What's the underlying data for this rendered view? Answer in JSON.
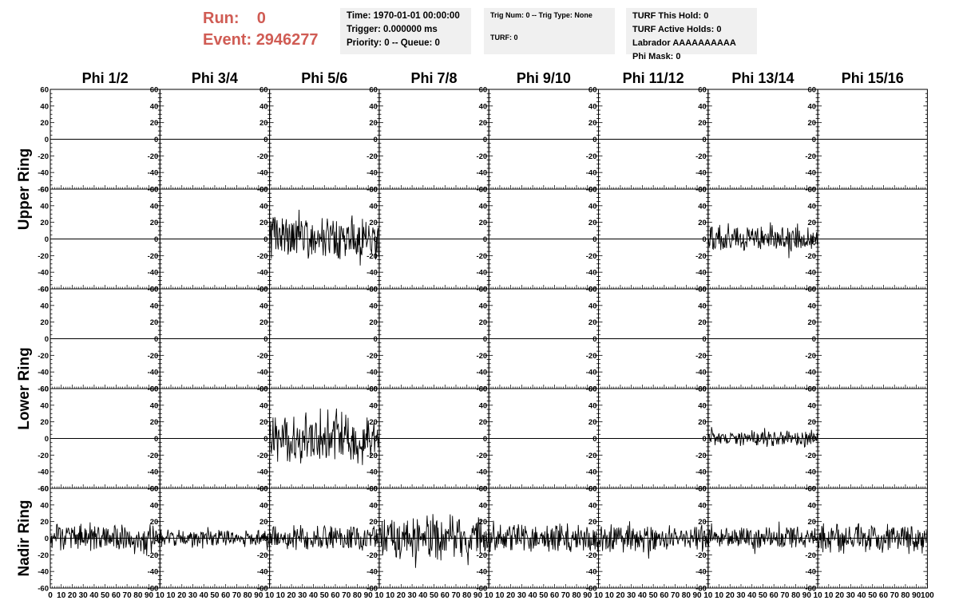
{
  "header": {
    "run_label": "Run:",
    "run_value": "0",
    "event_label": "Event:",
    "event_value": "2946277"
  },
  "info_time": {
    "time": "Time: 1970-01-01 00:00:00",
    "trigger": "Trigger: 0.000000 ms",
    "priority": "Priority: 0 -- Queue: 0"
  },
  "info_trig": {
    "trig": "Trig Num: 0 -- Trig Type: None",
    "turf": "TURF: 0"
  },
  "info_turf": {
    "this_hold": "TURF This Hold: 0",
    "active_holds": "TURF Active Holds: 0",
    "labrador": "Labrador AAAAAAAAAA",
    "phi_mask": "Phi Mask: 0"
  },
  "chart_data": {
    "type": "line",
    "columns": [
      "Phi 1/2",
      "Phi 3/4",
      "Phi 5/6",
      "Phi 7/8",
      "Phi 9/10",
      "Phi 11/12",
      "Phi 13/14",
      "Phi 15/16"
    ],
    "ring_labels": [
      "Upper Ring",
      "Lower Ring",
      "Nadir Ring"
    ],
    "rows_per_ring": [
      2,
      2,
      1
    ],
    "xlim": [
      0,
      100
    ],
    "ylim": [
      -60,
      60
    ],
    "y_ticks": [
      60,
      40,
      20,
      0,
      -20,
      -40,
      -60
    ],
    "x_ticks": [
      "0",
      "10",
      "20",
      "30",
      "40",
      "50",
      "60",
      "70",
      "80",
      "90",
      "100"
    ],
    "waveforms": [
      {
        "row": 1,
        "col": 2,
        "amplitude": 22,
        "y_range": [
          -58,
          38
        ]
      },
      {
        "row": 1,
        "col": 6,
        "amplitude": 12,
        "y_range": [
          -32,
          20
        ]
      },
      {
        "row": 3,
        "col": 2,
        "amplitude": 24,
        "y_range": [
          -52,
          36
        ]
      },
      {
        "row": 3,
        "col": 6,
        "amplitude": 8,
        "y_range": [
          -22,
          16
        ]
      },
      {
        "row": 4,
        "col": 0,
        "amplitude": 14,
        "y_range": [
          -48,
          30
        ]
      },
      {
        "row": 4,
        "col": 1,
        "amplitude": 8,
        "y_range": [
          -22,
          14
        ]
      },
      {
        "row": 4,
        "col": 2,
        "amplitude": 13,
        "y_range": [
          -40,
          24
        ]
      },
      {
        "row": 4,
        "col": 3,
        "amplitude": 22,
        "y_range": [
          -55,
          38
        ]
      },
      {
        "row": 4,
        "col": 4,
        "amplitude": 14,
        "y_range": [
          -40,
          28
        ]
      },
      {
        "row": 4,
        "col": 5,
        "amplitude": 13,
        "y_range": [
          -38,
          30
        ]
      },
      {
        "row": 4,
        "col": 6,
        "amplitude": 11,
        "y_range": [
          -32,
          20
        ]
      },
      {
        "row": 4,
        "col": 7,
        "amplitude": 14,
        "y_range": [
          -50,
          25
        ]
      }
    ]
  }
}
